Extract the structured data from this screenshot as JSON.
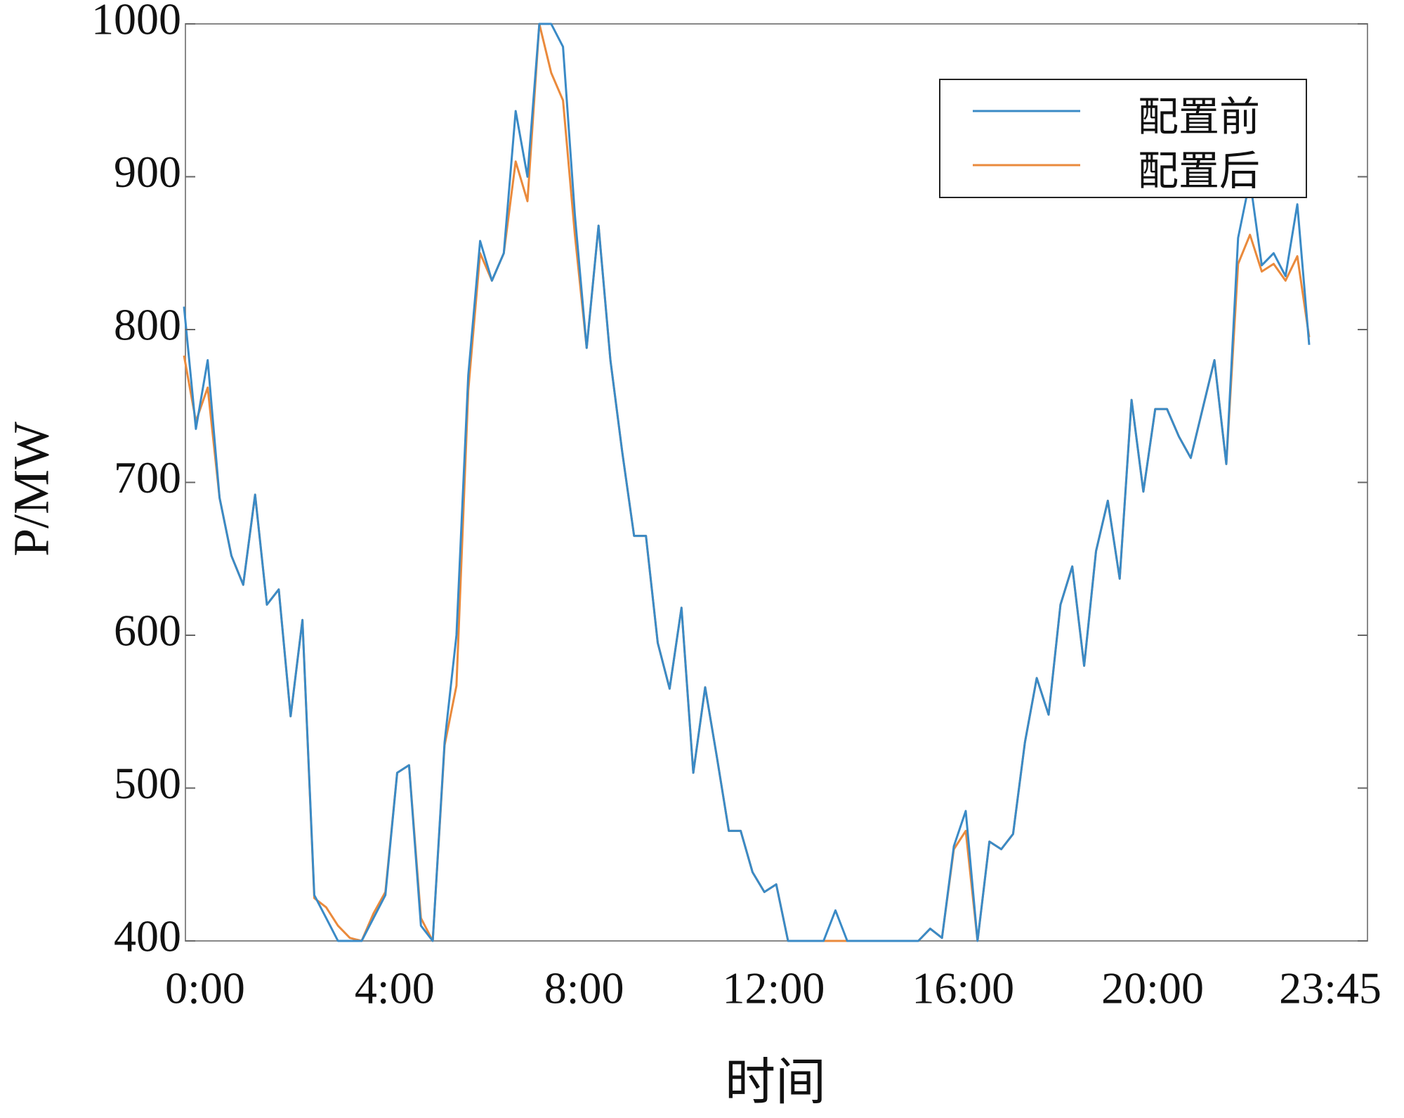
{
  "chart_data": {
    "type": "line",
    "ylabel": "P/MW",
    "xlabel": "时间",
    "categories": [
      "0:00",
      null,
      null,
      null,
      null,
      null,
      null,
      null,
      null,
      null,
      null,
      null,
      null,
      null,
      null,
      null,
      "4:00",
      null,
      null,
      null,
      null,
      null,
      null,
      null,
      null,
      null,
      null,
      null,
      null,
      null,
      null,
      null,
      "8:00",
      null,
      null,
      null,
      null,
      null,
      null,
      null,
      null,
      null,
      null,
      null,
      null,
      null,
      null,
      null,
      "12:00",
      null,
      null,
      null,
      null,
      null,
      null,
      null,
      null,
      null,
      null,
      null,
      null,
      null,
      null,
      null,
      "16:00",
      null,
      null,
      null,
      null,
      null,
      null,
      null,
      null,
      null,
      null,
      null,
      null,
      null,
      null,
      null,
      "20:00",
      null,
      null,
      null,
      null,
      null,
      null,
      null,
      null,
      null,
      null,
      null,
      null,
      null,
      null,
      "23:45"
    ],
    "series": [
      {
        "name": "配置前",
        "color": "#3a8ac6",
        "values": [
          815,
          735,
          780,
          690,
          652,
          633,
          692,
          620,
          630,
          547,
          610,
          430,
          415,
          400,
          400,
          400,
          415,
          430,
          510,
          515,
          410,
          400,
          530,
          600,
          770,
          858,
          832,
          850,
          943,
          900,
          1000,
          1000,
          985,
          875,
          788,
          868,
          780,
          720,
          665,
          665,
          595,
          565,
          618,
          510,
          566,
          520,
          472,
          472,
          445,
          432,
          437,
          400,
          400,
          400,
          400,
          420,
          400,
          400,
          400,
          400,
          400,
          400,
          400,
          408,
          402,
          462,
          485,
          400,
          465,
          460,
          470,
          530,
          572,
          548,
          620,
          645,
          580,
          655,
          688,
          637,
          754,
          694,
          748,
          748,
          730,
          716,
          748,
          780,
          712,
          860,
          898,
          842,
          850,
          835,
          882,
          790
        ]
      },
      {
        "name": "配置后",
        "color": "#ea8a3c",
        "values": [
          783,
          740,
          762,
          690,
          652,
          633,
          692,
          620,
          630,
          547,
          610,
          428,
          422,
          410,
          402,
          400,
          418,
          432,
          510,
          515,
          415,
          400,
          528,
          567,
          760,
          850,
          832,
          850,
          910,
          884,
          1000,
          968,
          950,
          862,
          788,
          868,
          780,
          720,
          665,
          665,
          595,
          565,
          618,
          510,
          566,
          520,
          472,
          472,
          445,
          432,
          437,
          400,
          400,
          400,
          400,
          400,
          400,
          400,
          400,
          400,
          400,
          400,
          400,
          408,
          402,
          460,
          472,
          400,
          465,
          460,
          470,
          530,
          572,
          548,
          620,
          645,
          580,
          655,
          688,
          637,
          754,
          694,
          748,
          748,
          730,
          716,
          748,
          780,
          712,
          843,
          862,
          838,
          843,
          832,
          848,
          795
        ]
      }
    ],
    "ylim": [
      400,
      1000
    ],
    "yticks": [
      400,
      500,
      600,
      700,
      800,
      900,
      1000
    ],
    "legend": "upper right"
  }
}
